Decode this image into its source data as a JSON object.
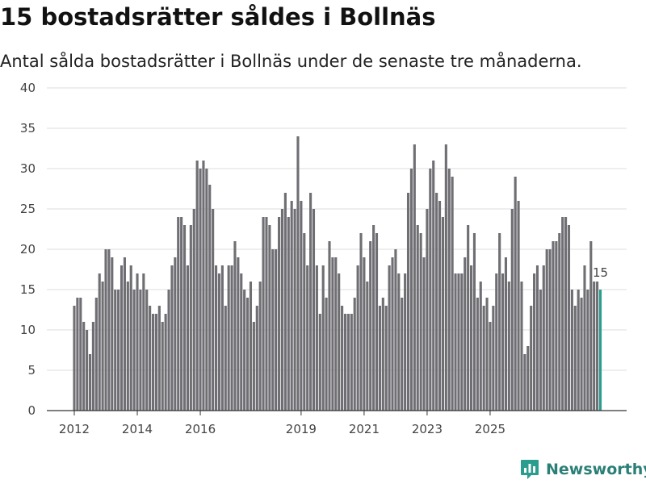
{
  "page": {
    "title": "15 bostadsrätter såldes i Bollnäs",
    "subtitle": "Antal sålda bostadsrätter i Bollnäs under de senaste tre månaderna."
  },
  "brand": {
    "name": "Newsworthy",
    "icon": "bar-chart-logo-icon",
    "color": "#2a9d8f"
  },
  "colors": {
    "bar": "#6f6e73",
    "highlight": "#2a9d8f",
    "grid": "#dddddd",
    "axis": "#444444"
  },
  "chart_data": {
    "type": "bar",
    "title": "15 bostadsrätter såldes i Bollnäs",
    "xlabel": "",
    "ylabel": "",
    "ylim": [
      0,
      40
    ],
    "yticks": [
      0,
      5,
      10,
      15,
      20,
      25,
      30,
      35,
      40
    ],
    "xticks": [
      {
        "label": "2012",
        "index": 0
      },
      {
        "label": "2014",
        "index": 20
      },
      {
        "label": "2016",
        "index": 40
      },
      {
        "label": "2019",
        "index": 72
      },
      {
        "label": "2021",
        "index": 92
      },
      {
        "label": "2023",
        "index": 112
      },
      {
        "label": "2025",
        "index": 132
      }
    ],
    "values": [
      13,
      14,
      14,
      11,
      10,
      7,
      11,
      14,
      17,
      16,
      20,
      20,
      19,
      15,
      15,
      18,
      19,
      16,
      18,
      15,
      17,
      15,
      17,
      15,
      13,
      12,
      12,
      13,
      11,
      12,
      15,
      18,
      19,
      24,
      24,
      23,
      18,
      23,
      25,
      31,
      30,
      31,
      30,
      28,
      25,
      18,
      17,
      18,
      13,
      18,
      18,
      21,
      19,
      17,
      15,
      14,
      16,
      11,
      13,
      16,
      24,
      24,
      23,
      20,
      20,
      24,
      25,
      27,
      24,
      26,
      25,
      34,
      26,
      22,
      18,
      27,
      25,
      18,
      12,
      18,
      14,
      21,
      19,
      19,
      17,
      13,
      12,
      12,
      12,
      14,
      18,
      22,
      19,
      16,
      21,
      23,
      22,
      13,
      14,
      13,
      18,
      19,
      20,
      17,
      14,
      17,
      27,
      30,
      33,
      23,
      22,
      19,
      25,
      30,
      31,
      27,
      26,
      24,
      33,
      30,
      29,
      17,
      17,
      17,
      19,
      23,
      18,
      22,
      14,
      16,
      13,
      14,
      11,
      13,
      17,
      22,
      17,
      19,
      16,
      25,
      29,
      26,
      16,
      7,
      8,
      13,
      17,
      18,
      15,
      18,
      20,
      20,
      21,
      21,
      22,
      24,
      24,
      23,
      15,
      13,
      15,
      14,
      18,
      15,
      21,
      16,
      16,
      15
    ],
    "highlight_index": 167,
    "annotation": {
      "label": "15",
      "index": 167
    }
  }
}
